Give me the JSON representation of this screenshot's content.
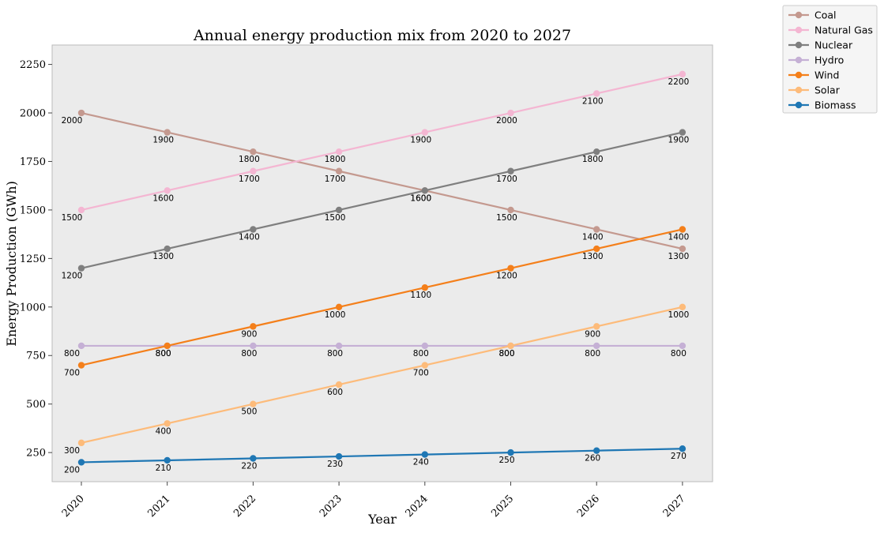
{
  "chart_data": {
    "type": "line",
    "title": "Annual energy production mix from 2020 to 2027",
    "xlabel": "Year",
    "ylabel": "Energy Production (GWh)",
    "x": [
      "2020",
      "2021",
      "2022",
      "2023",
      "2024",
      "2025",
      "2026",
      "2027"
    ],
    "ylim": [
      100,
      2350
    ],
    "yticks": [
      250,
      500,
      750,
      1000,
      1250,
      1500,
      1750,
      2000,
      2250
    ],
    "grid": false,
    "legend_position": "outside top-right",
    "series": [
      {
        "name": "Coal",
        "color": "#c4998f",
        "values": [
          2000,
          1900,
          1800,
          1700,
          1600,
          1500,
          1400,
          1300
        ]
      },
      {
        "name": "Natural Gas",
        "color": "#f4b6d2",
        "values": [
          1500,
          1600,
          1700,
          1800,
          1900,
          2000,
          2100,
          2200
        ]
      },
      {
        "name": "Nuclear",
        "color": "#7f7f7f",
        "values": [
          1200,
          1300,
          1400,
          1500,
          1600,
          1700,
          1800,
          1900
        ]
      },
      {
        "name": "Hydro",
        "color": "#c5b0d5",
        "values": [
          800,
          800,
          800,
          800,
          800,
          800,
          800,
          800
        ]
      },
      {
        "name": "Wind",
        "color": "#f47f1a",
        "values": [
          700,
          800,
          900,
          1000,
          1100,
          1200,
          1300,
          1400
        ]
      },
      {
        "name": "Solar",
        "color": "#fdbb7a",
        "values": [
          300,
          400,
          500,
          600,
          700,
          800,
          900,
          1000
        ]
      },
      {
        "name": "Biomass",
        "color": "#1f77b4",
        "values": [
          200,
          210,
          220,
          230,
          240,
          250,
          260,
          270
        ]
      }
    ]
  }
}
